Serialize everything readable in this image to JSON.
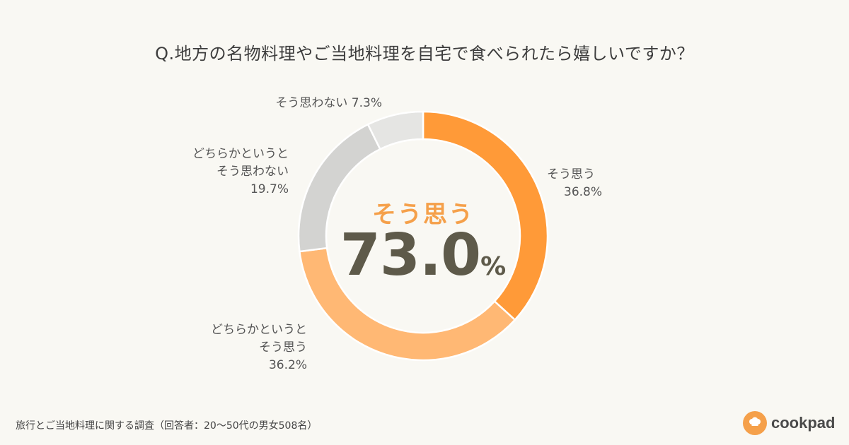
{
  "title": "Q.地方の名物料理やご当地料理を自宅で食べられたら嬉しいですか？",
  "center": {
    "label": "そう思う",
    "value": "73.0",
    "unit": "%"
  },
  "chart_data": {
    "type": "pie",
    "title": "Q.地方の名物料理やご当地料理を自宅で食べられたら嬉しいですか？",
    "unit": "%",
    "slices": [
      {
        "label": "そう思う",
        "value": 36.8,
        "color": "#ff9a38"
      },
      {
        "label": "どちらかというとそう思う",
        "value": 36.2,
        "color": "#ffb874"
      },
      {
        "label": "どちらかというとそう思わない",
        "value": 19.7,
        "color": "#d3d3d1"
      },
      {
        "label": "そう思わない",
        "value": 7.3,
        "color": "#e5e5e3"
      }
    ]
  },
  "labels": {
    "s1_line1": "そう思う",
    "s1_line2": "36.8%",
    "s2_line1": "どちらかというと",
    "s2_line2": "そう思う",
    "s2_line3": "36.2%",
    "s3_line1": "どちらかというと",
    "s3_line2": "そう思わない",
    "s3_line3": "19.7%",
    "s4_line1": "そう思わない 7.3%"
  },
  "footnote": "旅行とご当地料理に関する調査（回答者：20〜50代の男女508名）",
  "brand": {
    "name": "cookpad",
    "icon": "chef-hat-icon",
    "color": "#f5a04a"
  }
}
